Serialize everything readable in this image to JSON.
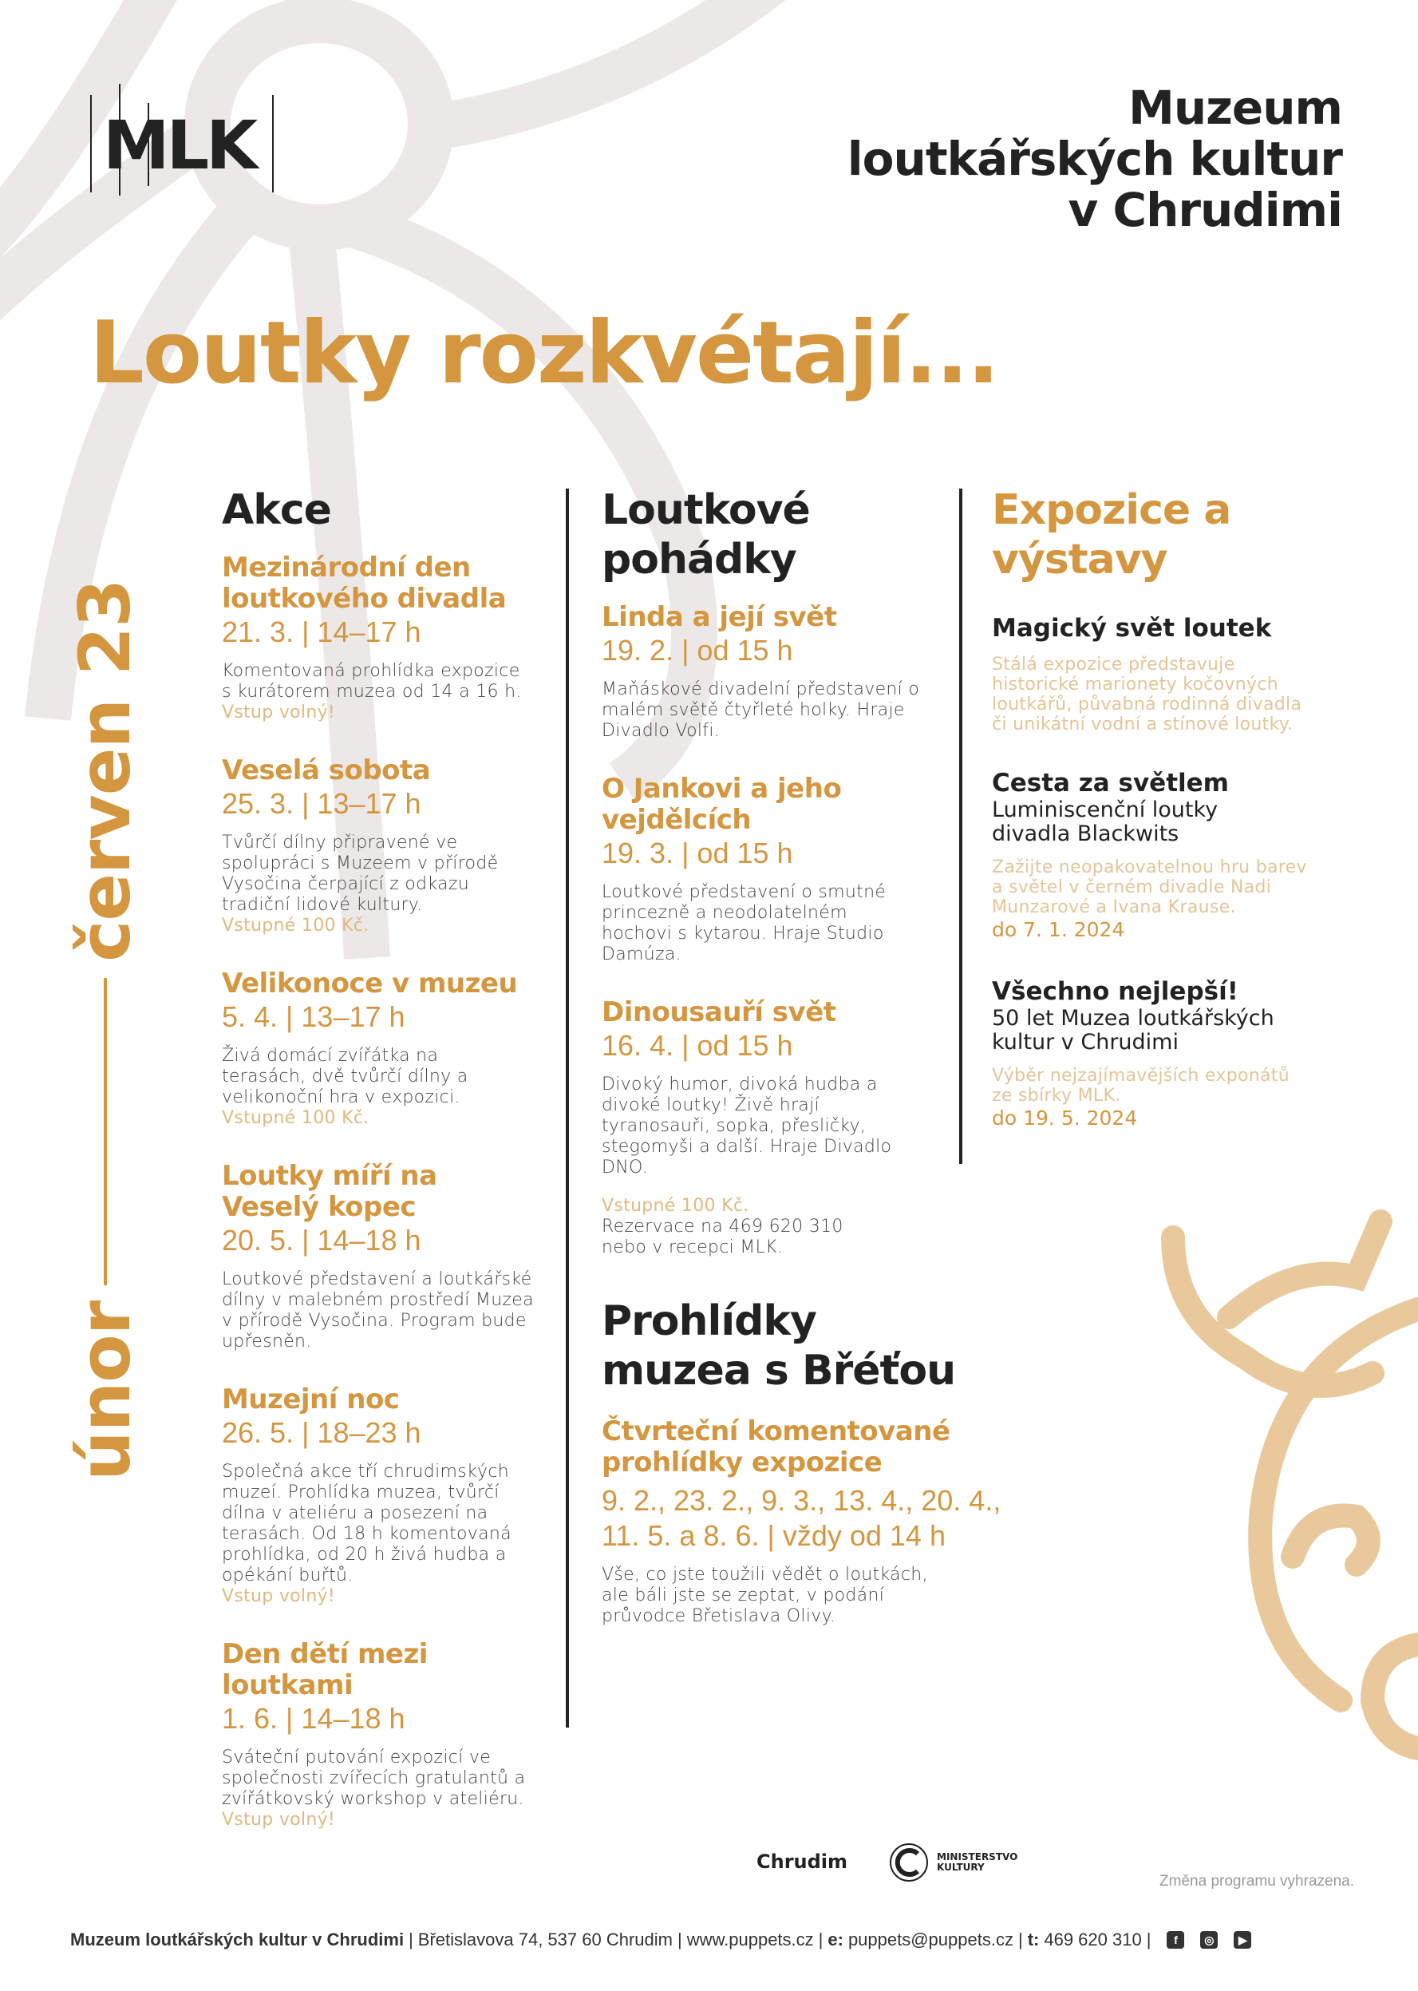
{
  "colors": {
    "accent": "#d4963f",
    "light_accent": "#dfb97f",
    "text": "#222222",
    "flower": "#ede8e8",
    "bull": "#e9c99c"
  },
  "logo": "MLK",
  "museum_name": [
    "Muzeum",
    "loutkářských kultur",
    "v Chrudimi"
  ],
  "headline": "Loutky rozkvétají...",
  "period": {
    "from": "únor",
    "to": "červen 23"
  },
  "akce": {
    "heading": "Akce",
    "events": [
      {
        "title": "Mezinárodní den loutkového divadla",
        "date": "21. 3. | 14–17 h",
        "body": "Komentovaná prohlídka expozice s kurátorem muzea od 14 a 16 h.",
        "note": "Vstup volný!"
      },
      {
        "title": "Veselá sobota",
        "date": "25. 3. | 13–17 h",
        "body": "Tvůrčí dílny připravené ve spolupráci s Muzeem v přírodě Vysočina čerpající z odkazu tradiční lidové kultury.",
        "note": "Vstupné 100 Kč."
      },
      {
        "title": "Velikonoce v muzeu",
        "date": "5. 4. | 13–17 h",
        "body": "Živá domácí zvířátka na terasách, dvě tvůrčí dílny a velikonoční hra v expozici.",
        "note": "Vstupné 100 Kč."
      },
      {
        "title": "Loutky míří na Veselý kopec",
        "date": "20. 5. | 14–18 h",
        "body": "Loutkové představení a loutkářské dílny v malebném prostředí Muzea v přírodě Vysočina. Program bude upřesněn.",
        "note": ""
      },
      {
        "title": "Muzejní noc",
        "date": "26. 5. | 18–23 h",
        "body": "Společná akce tří chrudimských muzeí. Prohlídka muzea, tvůrčí dílna v ateliéru a posezení na terasách. Od 18 h komentovaná prohlídka, od 20 h živá hudba a opékání buřtů.",
        "note": "Vstup volný!"
      },
      {
        "title": "Den dětí mezi loutkami",
        "date": "1. 6. | 14–18 h",
        "body": "Sváteční putování expozicí ve společnosti zvířecích gratulantů a zvířátkovský workshop v ateliéru.",
        "note": "Vstup volný!"
      }
    ]
  },
  "pohadky": {
    "heading": "Loutkové pohádky",
    "events": [
      {
        "title": "Linda a její svět",
        "date": "19. 2. | od 15 h",
        "body": "Maňáskové divadelní představení o malém světě čtyřleté holky. Hraje Divadlo Volfi."
      },
      {
        "title": "O Jankovi a jeho vejdělcích",
        "date": "19. 3. | od 15 h",
        "body": "Loutkové představení o smutné princezně a neodolatelném hochovi s kytarou. Hraje Studio Damúza."
      },
      {
        "title": "Dinousauří svět",
        "date": "16. 4. | od 15 h",
        "body": "Divoký humor, divoká hudba a divoké loutky! Živě hrají tyranosauři, sopka, přesličky, stegomyši a další. Hraje Divadlo DNO."
      }
    ],
    "price": "Vstupné 100 Kč.",
    "reservation": "Rezervace na 469 620 310 nebo v recepci MLK."
  },
  "prohlidky": {
    "heading": "Prohlídky muzea s Břéťou",
    "title": "Čtvrteční komentované prohlídky expozice",
    "dates": "9. 2., 23. 2., 9. 3., 13. 4., 20. 4., 11. 5. a 8. 6. | vždy od 14 h",
    "body": "Vše, co jste toužili vědět o loutkách, ale báli jste se zeptat, v podání průvodce Břetislava Olivy."
  },
  "expozice": {
    "heading": "Expozice a výstavy",
    "items": [
      {
        "title": "Magický svět loutek",
        "subtitle": "",
        "body": "Stálá expozice představuje historické marionety kočovných loutkářů, půvabná rodinná divadla či unikátní vodní a stínové loutky.",
        "until": ""
      },
      {
        "title": "Cesta za světlem",
        "subtitle": "Luminiscenční loutky divadla Blackwits",
        "body": "Zažijte neopakovatelnou hru barev a světel v černém divadle Nadi Munzarové a Ivana Krause.",
        "until": "do 7. 1. 2024"
      },
      {
        "title": "Všechno nejlepší!",
        "subtitle": "50 let Muzea loutkářských kultur v Chrudimi",
        "body": "Výběr nejzajímavějších exponátů ze sbírky MLK.",
        "until": "do 19. 5. 2024"
      }
    ]
  },
  "sponsors": {
    "chrudim": "Chrudim",
    "ministry": "MINISTERSTVO KULTURY"
  },
  "disclaimer": "Změna programu vyhrazena.",
  "footer": {
    "name": "Muzeum loutkářských kultur v Chrudimi",
    "address": "Břetislavova 74, 537 60 Chrudim",
    "web": "www.puppets.cz",
    "email_label": "e:",
    "email": "puppets@puppets.cz",
    "phone_label": "t:",
    "phone": "469 620 310",
    "social": [
      "facebook-icon",
      "instagram-icon",
      "youtube-icon"
    ]
  }
}
